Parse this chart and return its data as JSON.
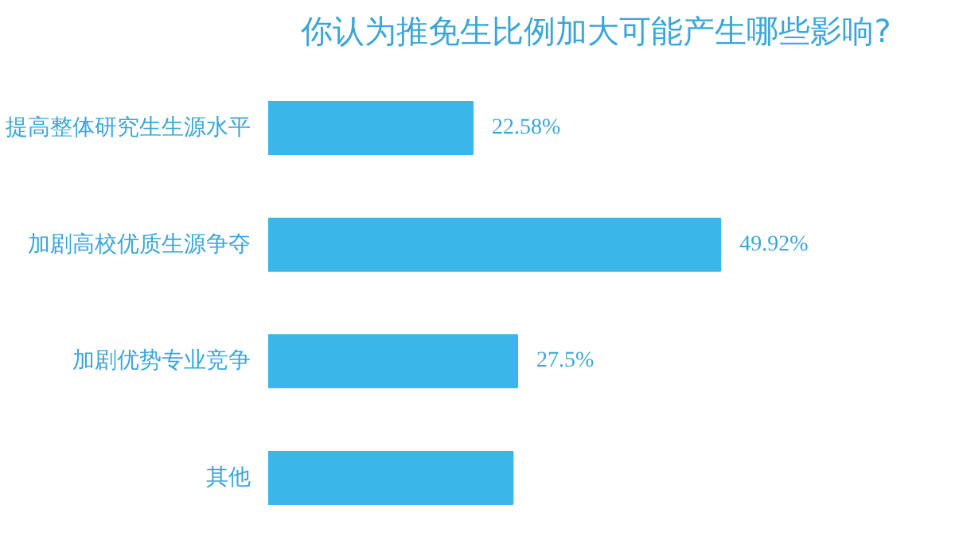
{
  "chart_data": {
    "type": "bar",
    "orientation": "horizontal",
    "title": "你认为推免生比例加大可能产生哪些影响?",
    "categories": [
      "提高整体研究生生源水平",
      "加剧高校优质生源争夺",
      "加剧优势专业竞争",
      "其他"
    ],
    "values": [
      22.58,
      49.92,
      27.5,
      27
    ],
    "value_labels": [
      "22.58%",
      "49.92%",
      "27.5%",
      null
    ],
    "color": "#3bb6e8",
    "grid": false
  }
}
